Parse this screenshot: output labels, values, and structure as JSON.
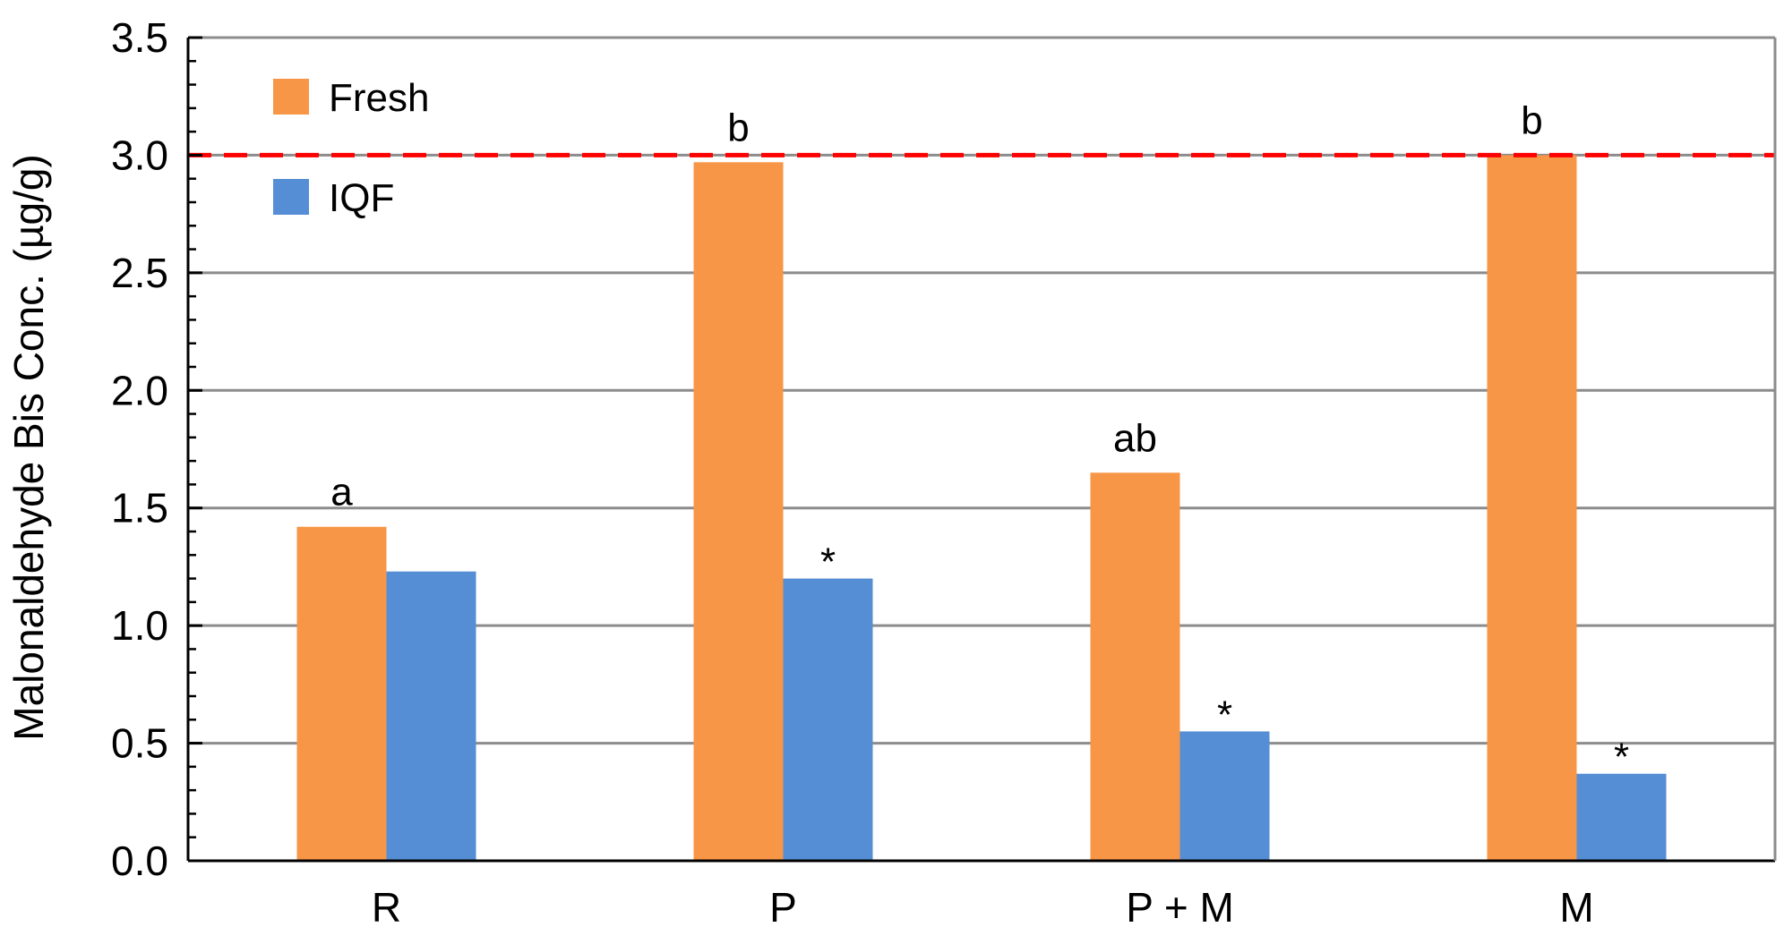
{
  "chart_data": {
    "type": "bar",
    "title": "",
    "xlabel": "",
    "ylabel": "Malonaldehyde Bis Conc. (µg/g)",
    "ylim": [
      0,
      3.5
    ],
    "yticks": [
      "0.0",
      "0.5",
      "1.0",
      "1.5",
      "2.0",
      "2.5",
      "3.0",
      "3.5"
    ],
    "ytick_values": [
      0,
      0.5,
      1.0,
      1.5,
      2.0,
      2.5,
      3.0,
      3.5
    ],
    "categories": [
      "R",
      "P",
      "P + M",
      "M"
    ],
    "series": [
      {
        "name": "Fresh",
        "color": "#F79646",
        "values": [
          1.42,
          2.97,
          1.65,
          3.0
        ],
        "labels": [
          "a",
          "b",
          "ab",
          "b"
        ]
      },
      {
        "name": "IQF",
        "color": "#558ED5",
        "values": [
          1.23,
          1.2,
          0.55,
          0.37
        ],
        "labels": [
          "",
          "*",
          "*",
          "*"
        ]
      }
    ],
    "reference_line": {
      "value": 3.0,
      "color": "#FF0000",
      "style": "dashed"
    },
    "grid": true,
    "legend": {
      "position": "top-left",
      "entries": [
        "Fresh",
        "IQF"
      ]
    }
  }
}
